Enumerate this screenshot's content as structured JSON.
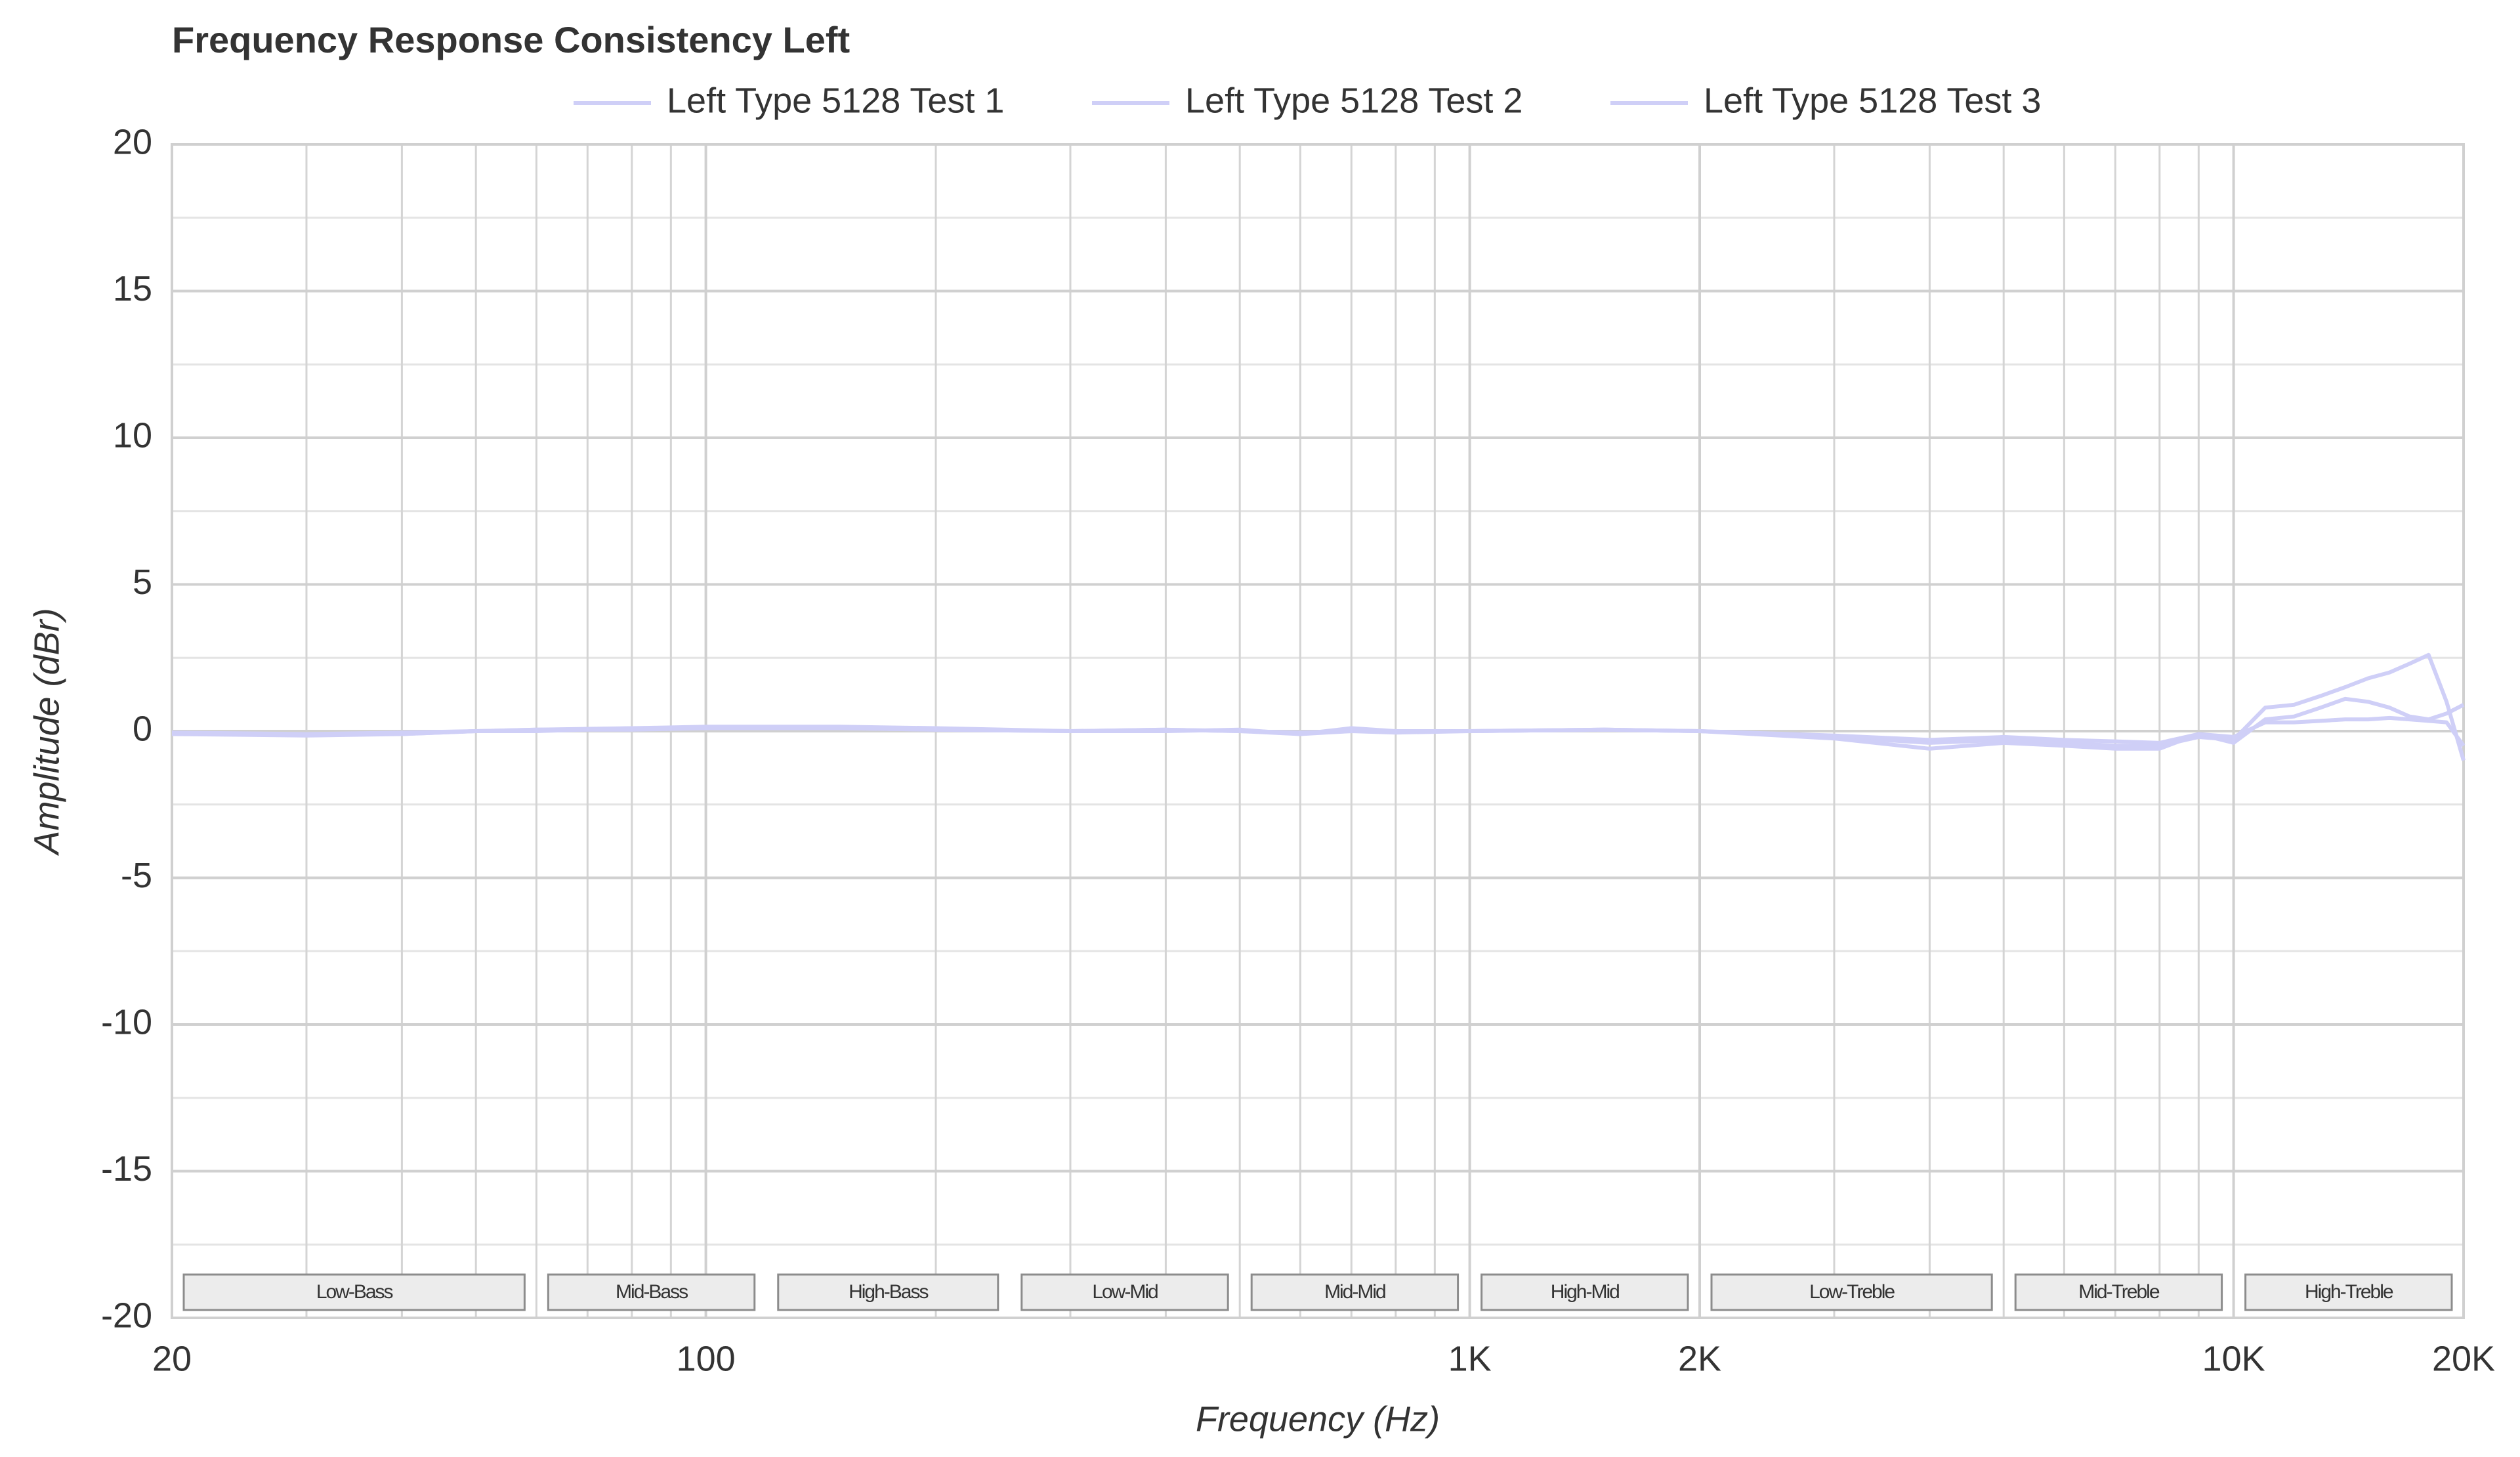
{
  "chart_data": {
    "type": "line",
    "title": "Frequency Response Consistency Left",
    "x_label": "Frequency (Hz)",
    "y_label": "Amplitude (dBr)",
    "xscale": "log",
    "xlim": [
      20,
      20000
    ],
    "ylim": [
      -20,
      20
    ],
    "xticks": [
      20,
      100,
      {
        "value": 1000,
        "label": "1K"
      },
      {
        "value": 2000,
        "label": "2K"
      },
      {
        "value": 10000,
        "label": "10K"
      },
      {
        "value": 20000,
        "label": "20K"
      }
    ],
    "yticks": [
      20,
      15,
      10,
      5,
      0,
      -5,
      -10,
      -15,
      -20
    ],
    "xminor": [
      30,
      40,
      50,
      60,
      70,
      80,
      90,
      200,
      300,
      400,
      500,
      600,
      700,
      800,
      900,
      3000,
      4000,
      5000,
      6000,
      7000,
      8000,
      9000
    ],
    "yminor": [
      17.5,
      12.5,
      7.5,
      2.5,
      -2.5,
      -7.5,
      -12.5,
      -17.5
    ],
    "grid": true,
    "legend": "top",
    "regions": [
      {
        "label": "Low-Bass",
        "range": [
          20,
          60
        ]
      },
      {
        "label": "Mid-Bass",
        "range": [
          60,
          120
        ]
      },
      {
        "label": "High-Bass",
        "range": [
          120,
          250
        ]
      },
      {
        "label": "Low-Mid",
        "range": [
          250,
          500
        ]
      },
      {
        "label": "Mid-Mid",
        "range": [
          500,
          1000
        ]
      },
      {
        "label": "High-Mid",
        "range": [
          1000,
          2000
        ]
      },
      {
        "label": "Low-Treble",
        "range": [
          2000,
          5000
        ]
      },
      {
        "label": "Mid-Treble",
        "range": [
          5000,
          10000
        ]
      },
      {
        "label": "High-Treble",
        "range": [
          10000,
          20000
        ]
      }
    ],
    "x": [
      20,
      30,
      40,
      50,
      60,
      80,
      100,
      150,
      200,
      300,
      400,
      500,
      600,
      700,
      800,
      1000,
      1500,
      2000,
      3000,
      4000,
      5000,
      6000,
      7000,
      8000,
      9000,
      10000,
      11000,
      12000,
      13000,
      14000,
      15000,
      16000,
      17000,
      18000,
      19000,
      20000
    ],
    "series": [
      {
        "name": "Left Type 5128 Test 1",
        "color": "#cfcff7",
        "values": [
          -0.1,
          -0.1,
          -0.1,
          0,
          0,
          0.1,
          0.1,
          0.1,
          0.05,
          0,
          0.05,
          0,
          -0.1,
          0,
          0,
          0,
          0.05,
          0,
          -0.2,
          -0.4,
          -0.3,
          -0.4,
          -0.5,
          -0.5,
          -0.2,
          -0.3,
          0.8,
          0.9,
          1.2,
          1.5,
          1.8,
          2.0,
          2.3,
          2.6,
          1.0,
          -1.0
        ]
      },
      {
        "name": "Left Type 5128 Test 2",
        "color": "#cfcff7",
        "values": [
          -0.1,
          -0.15,
          -0.1,
          0,
          0.05,
          0.1,
          0.15,
          0.15,
          0.1,
          0,
          0,
          0.05,
          -0.1,
          0.1,
          0,
          0,
          0.05,
          0,
          -0.25,
          -0.6,
          -0.4,
          -0.5,
          -0.6,
          -0.6,
          -0.1,
          -0.4,
          0.4,
          0.5,
          0.8,
          1.1,
          1.0,
          0.8,
          0.5,
          0.4,
          0.6,
          0.9
        ]
      },
      {
        "name": "Left Type 5128 Test 3",
        "color": "#cfcff7",
        "values": [
          -0.05,
          -0.1,
          -0.05,
          0,
          0.05,
          0.05,
          0.1,
          0.1,
          0.05,
          0,
          0.05,
          0,
          -0.05,
          0,
          -0.05,
          0,
          0.05,
          0,
          -0.15,
          -0.3,
          -0.2,
          -0.3,
          -0.35,
          -0.4,
          -0.1,
          -0.2,
          0.3,
          0.3,
          0.35,
          0.4,
          0.4,
          0.45,
          0.4,
          0.35,
          0.3,
          -0.5
        ]
      }
    ]
  }
}
